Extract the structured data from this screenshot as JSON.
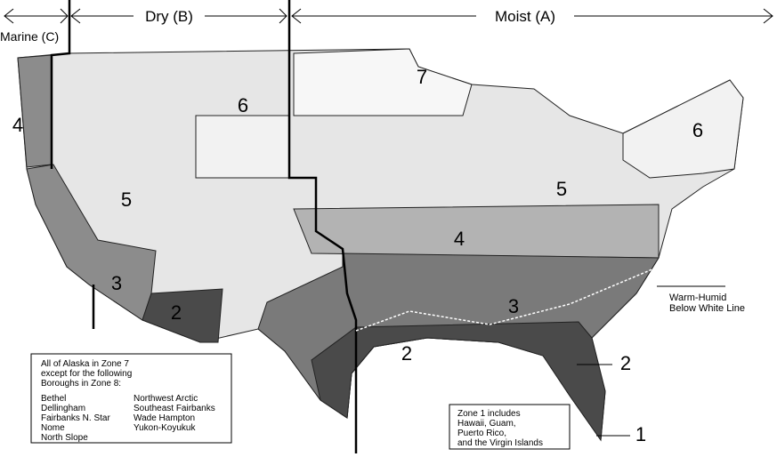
{
  "header": {
    "marine": "Marine (C)",
    "dry": "Dry (B)",
    "moist": "Moist (A)"
  },
  "zone_labels": [
    "7",
    "6",
    "6",
    "4",
    "5",
    "5",
    "4",
    "3",
    "2",
    "3",
    "2",
    "2",
    "1"
  ],
  "warm_humid": [
    "Warm-Humid",
    "Below White Line"
  ],
  "alaska_note": {
    "lines": [
      "All of Alaska in Zone 7",
      "except for the following",
      "Boroughs in Zone 8:"
    ],
    "boroughs": [
      "Bethel",
      "Dellingham",
      "Fairbanks N. Star",
      "Nome",
      "North Slope",
      "Northwest Arctic",
      "Southeast Fairbanks",
      "Wade Hampton",
      "Yukon-Koyukuk"
    ]
  },
  "zone1_note": [
    "Zone 1 includes",
    "Hawaii, Guam,",
    "Puerto Rico,",
    "and the Virgin Islands"
  ]
}
